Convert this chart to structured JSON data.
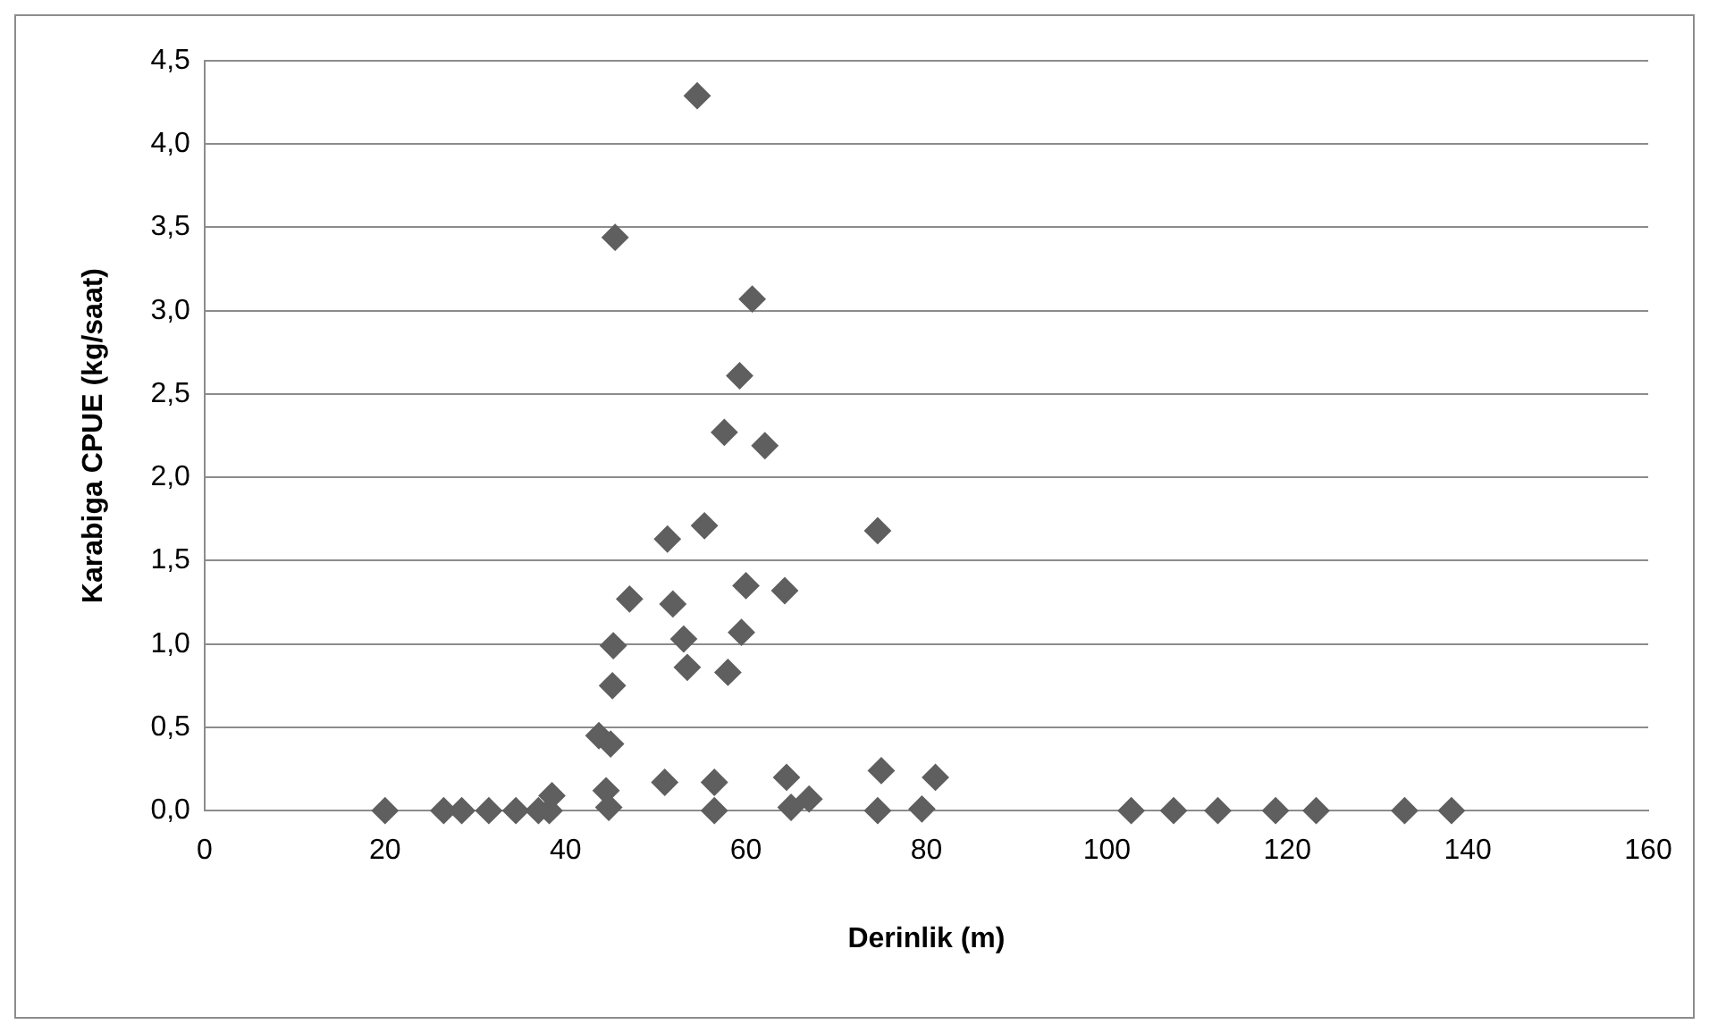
{
  "chart_data": {
    "type": "scatter",
    "xlabel": "Derinlik (m)",
    "ylabel": "Karabiga CPUE (kg/saat)",
    "x": [
      20,
      26.5,
      28.5,
      31.5,
      34.5,
      37,
      38.2,
      38.5,
      43.7,
      45,
      44.5,
      44.8,
      51,
      56.5,
      56.5,
      64.5,
      65,
      67,
      74.6,
      75,
      79.5,
      81,
      102.7,
      107.4,
      112.3,
      118.7,
      123.2,
      133,
      138.2,
      54.6,
      45.5,
      60.7,
      59.3,
      57.6,
      62.1,
      51.3,
      55.4,
      74.6,
      47.1,
      51.9,
      60,
      64.3,
      45.3,
      53.1,
      59.5,
      53.5,
      58,
      45.2
    ],
    "series": [
      {
        "color": "#5f5f5f",
        "values": [
          0,
          0,
          0,
          0,
          0,
          0,
          0,
          0.09,
          0.45,
          0.4,
          0.12,
          0.02,
          0.17,
          0.17,
          0,
          0.2,
          0.02,
          0.07,
          0,
          0.24,
          0.01,
          0.2,
          0,
          0,
          0,
          0,
          0,
          0,
          0,
          4.29,
          3.44,
          3.07,
          2.61,
          2.27,
          2.19,
          1.63,
          1.71,
          1.68,
          1.27,
          1.24,
          1.35,
          1.32,
          0.99,
          1.03,
          1.07,
          0.86,
          0.83,
          0.75
        ]
      }
    ],
    "xlim": [
      0,
      160
    ],
    "xticks": [
      0,
      20,
      40,
      60,
      80,
      100,
      120,
      140,
      160
    ],
    "ylim": [
      0,
      4.5
    ],
    "yticks": [
      {
        "value": 0,
        "label": "0,0"
      },
      {
        "value": 0.5,
        "label": "0,5"
      },
      {
        "value": 1,
        "label": "1,0"
      },
      {
        "value": 1.5,
        "label": "1,5"
      },
      {
        "value": 2,
        "label": "2,0"
      },
      {
        "value": 2.5,
        "label": "2,5"
      },
      {
        "value": 3,
        "label": "3,0"
      },
      {
        "value": 3.5,
        "label": "3,5"
      },
      {
        "value": 4,
        "label": "4,0"
      },
      {
        "value": 4.5,
        "label": "4,5"
      }
    ],
    "grid": "y",
    "marker": "diamond",
    "legend": false
  }
}
